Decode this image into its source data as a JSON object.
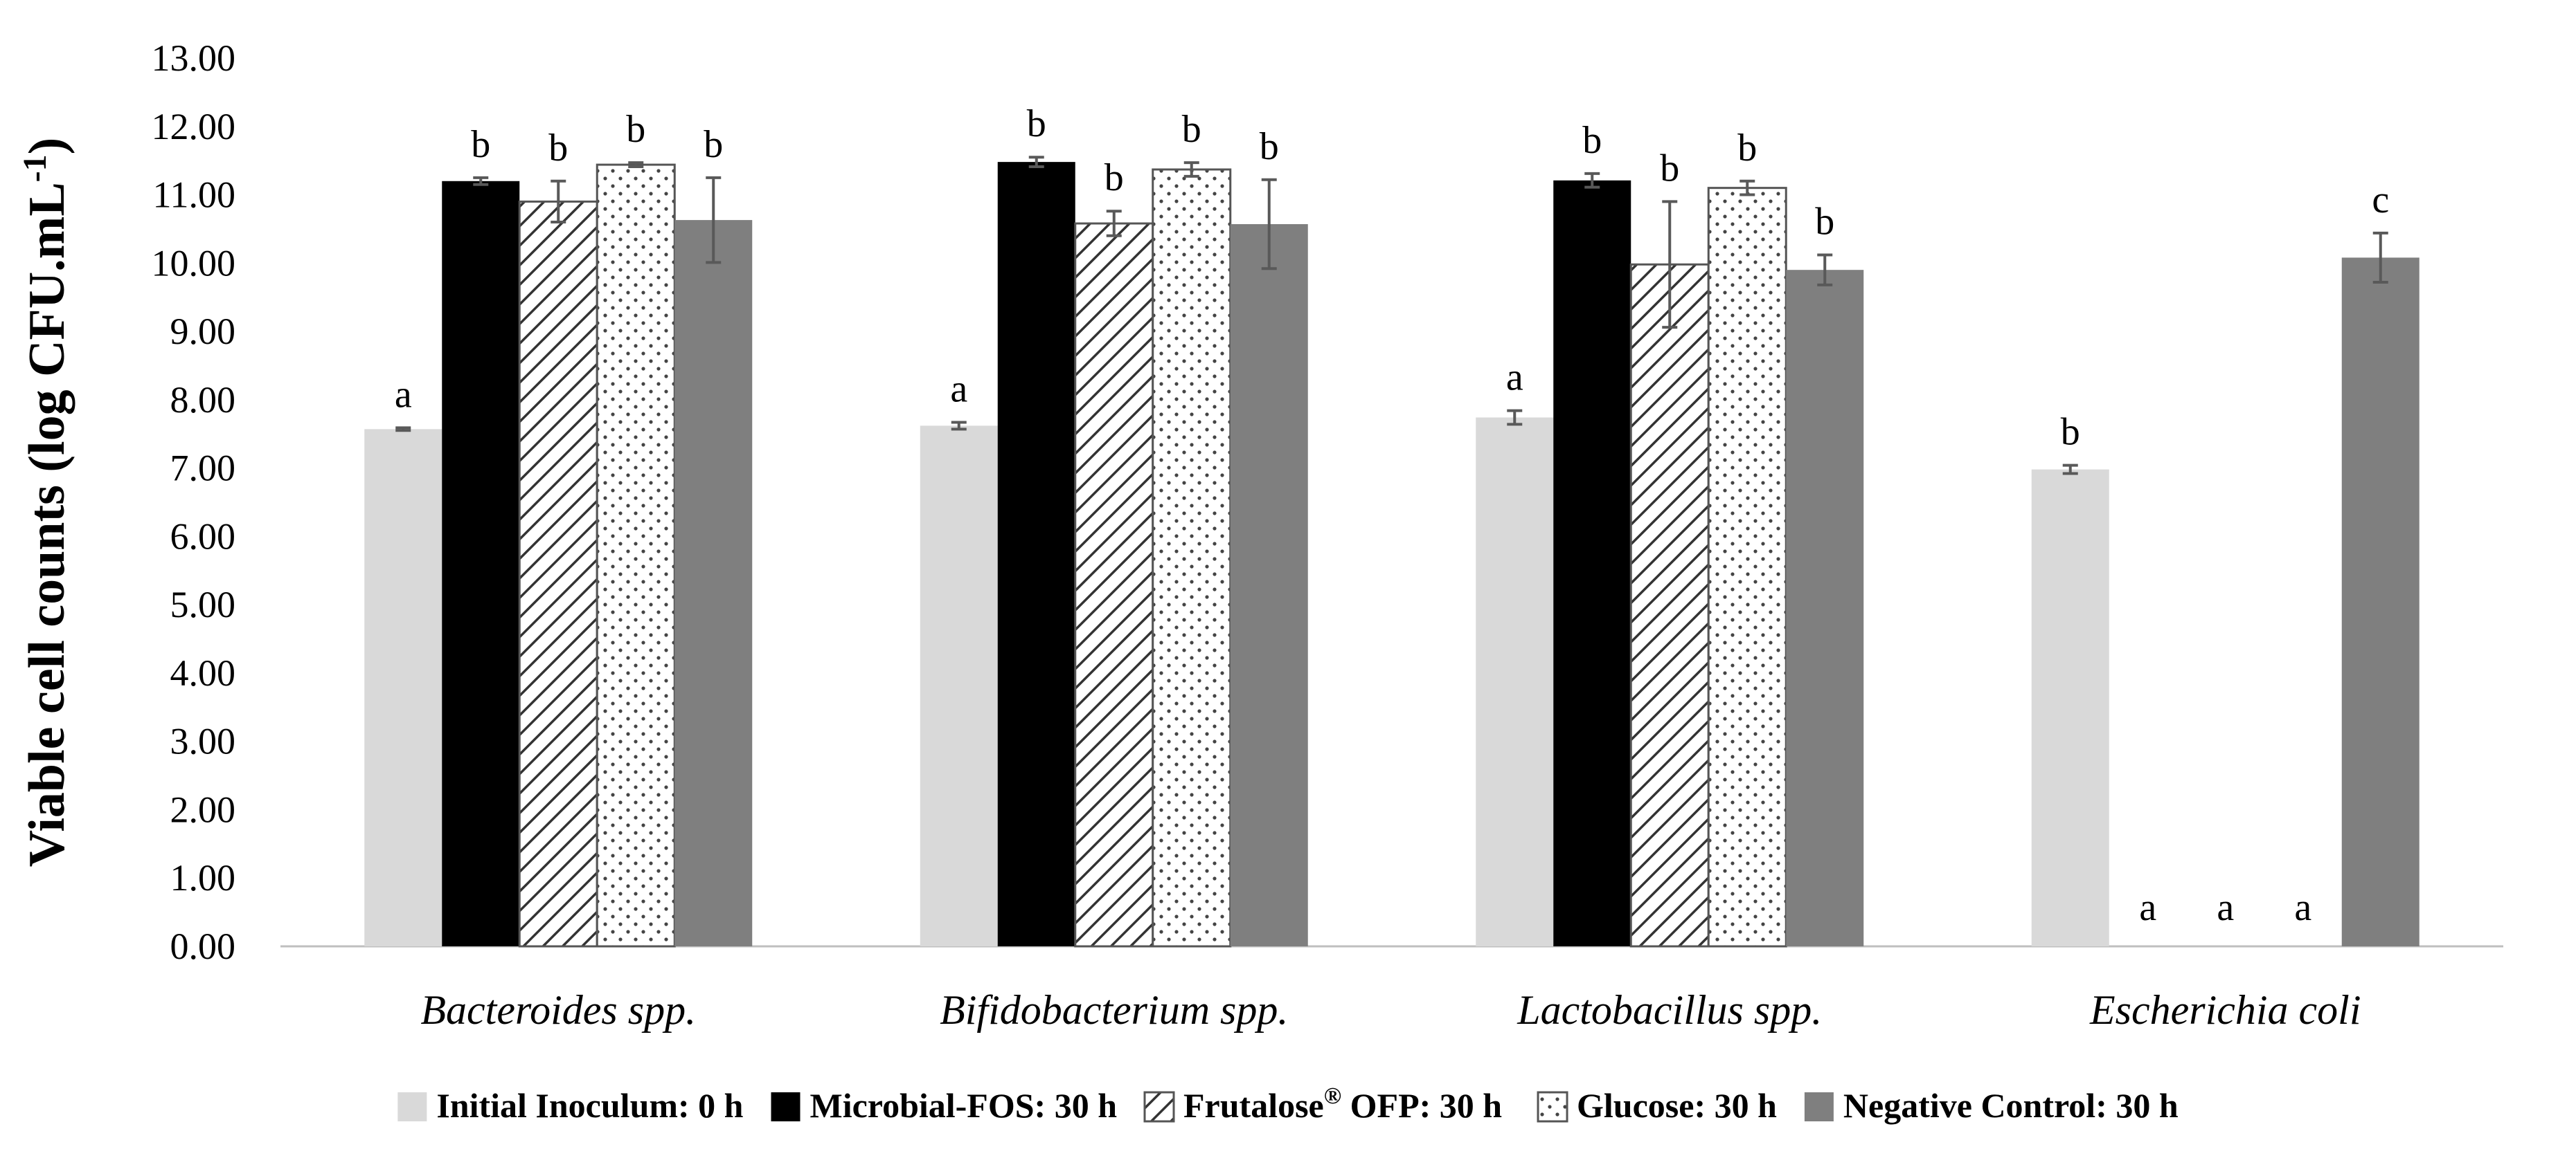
{
  "chart_data": {
    "type": "bar",
    "title": "",
    "xlabel": "",
    "ylabel": "Viable cell counts (log CFU.mL",
    "ylabel_superscript": "-1",
    "ylabel_close": ")",
    "ylim": [
      0,
      13
    ],
    "yticks": [
      "0.00",
      "1.00",
      "2.00",
      "3.00",
      "4.00",
      "5.00",
      "6.00",
      "7.00",
      "8.00",
      "9.00",
      "10.00",
      "11.00",
      "12.00",
      "13.00"
    ],
    "categories": [
      "Bacteroides spp.",
      "Bifidobacterium spp.",
      "Lactobacillus spp.",
      "Escherichia coli"
    ],
    "series": [
      {
        "name": "Initial Inoculum: 0 h",
        "legend_label": "Initial Inoculum: 0 h",
        "fill": "light",
        "color": "#d9d9d9",
        "values": [
          7.57,
          7.62,
          7.74,
          6.98
        ],
        "errors": [
          0.02,
          0.05,
          0.1,
          0.06
        ],
        "sig": [
          "a",
          "a",
          "a",
          "b"
        ]
      },
      {
        "name": "Microbial-FOS: 30 h",
        "legend_label": "Microbial-FOS: 30 h",
        "fill": "solid",
        "color": "#000000",
        "values": [
          11.2,
          11.48,
          11.21,
          0
        ],
        "errors": [
          0.05,
          0.07,
          0.1,
          0
        ],
        "sig": [
          "b",
          "b",
          "b",
          "a"
        ]
      },
      {
        "name": "Frutalose® OFP: 30 h",
        "legend_label": "Frutalose",
        "legend_sup": "®",
        "legend_rest": " OFP: 30 h",
        "fill": "hatch",
        "color": "#ffffff",
        "values": [
          10.9,
          10.58,
          9.98,
          0
        ],
        "errors": [
          0.3,
          0.18,
          0.92,
          0
        ],
        "sig": [
          "b",
          "b",
          "b",
          "a"
        ]
      },
      {
        "name": "Glucose: 30 h",
        "legend_label": "Glucose: 30 h",
        "fill": "dots",
        "color": "#ffffff",
        "values": [
          11.44,
          11.37,
          11.1,
          0
        ],
        "errors": [
          0.03,
          0.1,
          0.1,
          0
        ],
        "sig": [
          "b",
          "b",
          "b",
          "a"
        ]
      },
      {
        "name": "Negative Control: 30 h",
        "legend_label": "Negative Control: 30 h",
        "fill": "solid",
        "color": "#7f7f7f",
        "values": [
          10.63,
          10.57,
          9.9,
          10.08
        ],
        "errors": [
          0.62,
          0.65,
          0.22,
          0.36
        ],
        "sig": [
          "b",
          "b",
          "b",
          "c"
        ]
      }
    ],
    "grid": false,
    "legend_position": "bottom"
  }
}
